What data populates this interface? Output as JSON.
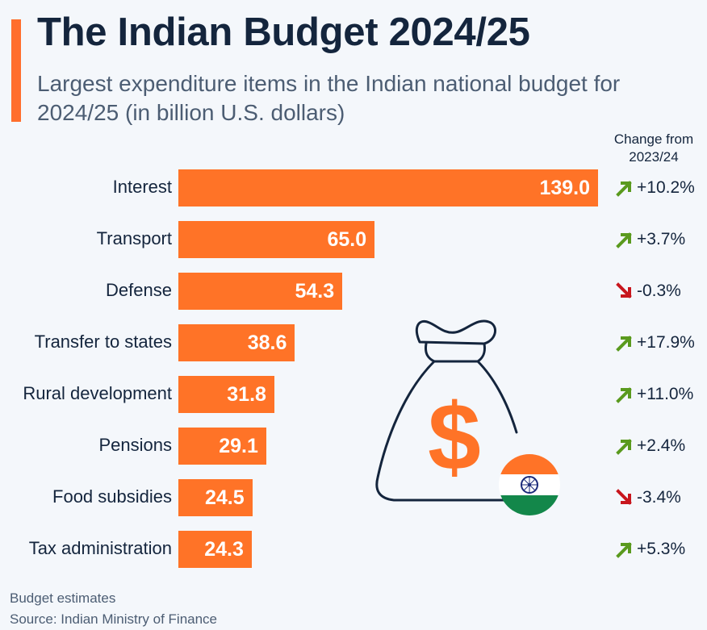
{
  "header": {
    "title": "The Indian Budget 2024/25",
    "subtitle": "Largest expenditure items in the Indian national budget for 2024/25 (in billion U.S. dollars)"
  },
  "change_header": {
    "line1": "Change from",
    "line2": "2023/24"
  },
  "footer": {
    "note": "Budget estimates",
    "source": "Source: Indian Ministry of Finance"
  },
  "colors": {
    "bar": "#ff7327",
    "accent": "#ff6e2c",
    "up": "#5a9a1e",
    "down": "#c8161d",
    "title": "#14253d"
  },
  "illustration": {
    "icons": [
      "money-bag-icon",
      "dollar-sign-icon",
      "india-flag-icon"
    ]
  },
  "chart_data": {
    "type": "bar",
    "orientation": "horizontal",
    "title": "The Indian Budget 2024/25",
    "subtitle": "Largest expenditure items in the Indian national budget for 2024/25 (in billion U.S. dollars)",
    "categories": [
      "Interest",
      "Transport",
      "Defense",
      "Transfer to states",
      "Rural development",
      "Pensions",
      "Food subsidies",
      "Tax administration"
    ],
    "values": [
      139.0,
      65.0,
      54.3,
      38.6,
      31.8,
      29.1,
      24.5,
      24.3
    ],
    "value_labels": [
      "139.0",
      "65.0",
      "54.3",
      "38.6",
      "31.8",
      "29.1",
      "24.5",
      "24.3"
    ],
    "changes": [
      "+10.2%",
      "+3.7%",
      "-0.3%",
      "+17.9%",
      "+11.0%",
      "+2.4%",
      "-3.4%",
      "+5.3%"
    ],
    "change_directions": [
      "up",
      "up",
      "down",
      "up",
      "up",
      "up",
      "down",
      "up"
    ],
    "xlim": [
      0,
      139.0
    ],
    "grid": false,
    "legend": "none"
  }
}
